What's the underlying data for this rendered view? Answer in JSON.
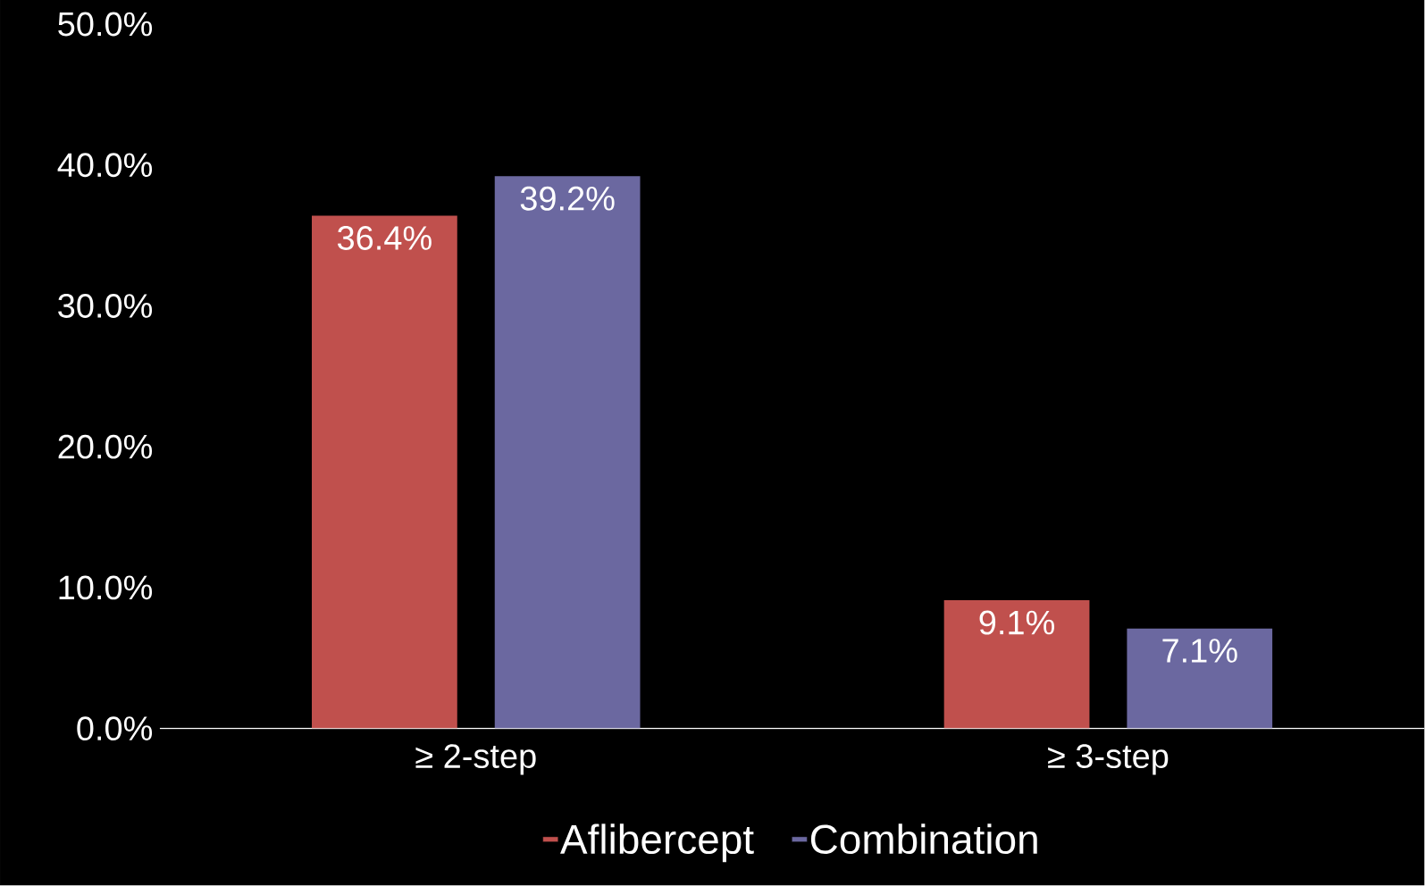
{
  "chart_data": {
    "type": "bar",
    "categories": [
      "≥ 2-step",
      "≥ 3-step"
    ],
    "series": [
      {
        "name": "Aflibercept",
        "color": "#c0504d",
        "values": [
          36.4,
          9.1
        ],
        "value_labels": [
          "36.4%",
          "9.1%"
        ]
      },
      {
        "name": "Combination",
        "color": "#6b68a0",
        "values": [
          39.2,
          7.1
        ],
        "value_labels": [
          "39.2%",
          "7.1%"
        ]
      }
    ],
    "ylim": [
      0,
      50
    ],
    "yticks": [
      {
        "value": 0,
        "label": "0.0%"
      },
      {
        "value": 10,
        "label": "10.0%"
      },
      {
        "value": 20,
        "label": "20.0%"
      },
      {
        "value": 30,
        "label": "30.0%"
      },
      {
        "value": 40,
        "label": "40.0%"
      },
      {
        "value": 50,
        "label": "50.0%"
      }
    ],
    "grid": false,
    "legend": "bottom"
  }
}
